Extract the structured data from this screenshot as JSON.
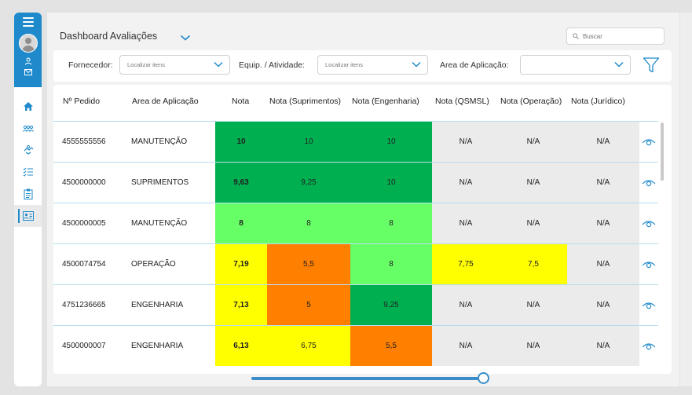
{
  "header": {
    "title": "Dashboard Avaliações",
    "search_placeholder": "Buscar"
  },
  "filters": {
    "fornecedor_label": "Fornecedor:",
    "fornecedor_placeholder": "Localizar itens",
    "equip_label": "Equip. / Atividade:",
    "equip_placeholder": "Localizar itens",
    "area_label": "Area de Aplicação:",
    "area_value": ""
  },
  "table": {
    "columns": [
      "Nº Pedido",
      "Area de Aplicação",
      "Nota",
      "Nota (Suprimentos)",
      "Nota (Engenharia)",
      "Nota (QSMSL)",
      "Nota (Operação)",
      "Nota (Jurídico)"
    ],
    "rows": [
      {
        "pedido": "4555555556",
        "area": "MANUTENÇÃO",
        "nota": "10",
        "suprimentos": "10",
        "engenharia": "10",
        "qsmsl": "N/A",
        "operacao": "N/A",
        "juridico": "N/A"
      },
      {
        "pedido": "4500000000",
        "area": "SUPRIMENTOS",
        "nota": "9,63",
        "suprimentos": "9,25",
        "engenharia": "10",
        "qsmsl": "N/A",
        "operacao": "N/A",
        "juridico": "N/A"
      },
      {
        "pedido": "4500000005",
        "area": "MANUTENÇÃO",
        "nota": "8",
        "suprimentos": "8",
        "engenharia": "8",
        "qsmsl": "N/A",
        "operacao": "N/A",
        "juridico": "N/A"
      },
      {
        "pedido": "4500074754",
        "area": "OPERAÇÃO",
        "nota": "7,19",
        "suprimentos": "5,5",
        "engenharia": "8",
        "qsmsl": "7,75",
        "operacao": "7,5",
        "juridico": "N/A"
      },
      {
        "pedido": "4751236665",
        "area": "ENGENHARIA",
        "nota": "7,13",
        "suprimentos": "5",
        "engenharia": "9,25",
        "qsmsl": "N/A",
        "operacao": "N/A",
        "juridico": "N/A"
      },
      {
        "pedido": "4500000007",
        "area": "ENGENHARIA",
        "nota": "6,13",
        "suprimentos": "6,75",
        "engenharia": "5,5",
        "qsmsl": "N/A",
        "operacao": "N/A",
        "juridico": "N/A"
      }
    ],
    "cell_colors": [
      [
        "#00b050",
        "#00b050",
        "#00b050",
        "#ebebeb",
        "#ebebeb",
        "#ebebeb"
      ],
      [
        "#00b050",
        "#00b050",
        "#00b050",
        "#ebebeb",
        "#ebebeb",
        "#ebebeb"
      ],
      [
        "#66ff66",
        "#66ff66",
        "#66ff66",
        "#ebebeb",
        "#ebebeb",
        "#ebebeb"
      ],
      [
        "#ffff00",
        "#ff7f00",
        "#66ff66",
        "#ffff00",
        "#ffff00",
        "#ebebeb"
      ],
      [
        "#ffff00",
        "#ff7f00",
        "#00b050",
        "#ebebeb",
        "#ebebeb",
        "#ebebeb"
      ],
      [
        "#ffff00",
        "#ffff00",
        "#ff7f00",
        "#ebebeb",
        "#ebebeb",
        "#ebebeb"
      ]
    ]
  },
  "colors": {
    "accent": "#1f8acb",
    "row_border": "#b9dcef"
  },
  "icons": [
    "menu-icon",
    "avatar",
    "user-icon",
    "mail-icon",
    "home-icon",
    "users-icon",
    "handshake-icon",
    "checklist-icon",
    "clipboard-icon",
    "id-card-icon",
    "chevron-down-icon",
    "search-icon",
    "filter-icon",
    "eye-icon"
  ]
}
